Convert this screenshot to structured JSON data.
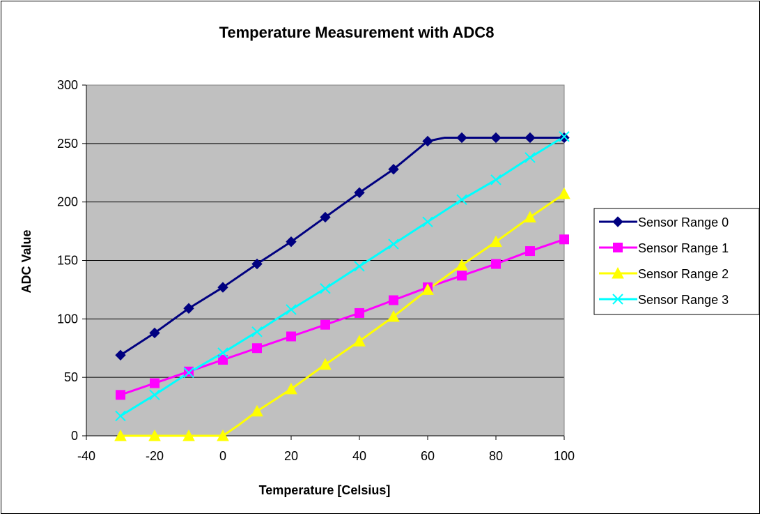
{
  "chart_data": {
    "type": "line",
    "title": "Temperature Measurement with ADC8",
    "xlabel": "Temperature [Celsius]",
    "ylabel": "ADC Value",
    "xlim": [
      -40,
      100
    ],
    "ylim": [
      0,
      300
    ],
    "xticks": [
      -40,
      -20,
      0,
      20,
      40,
      60,
      80,
      100
    ],
    "yticks": [
      0,
      50,
      100,
      150,
      200,
      250,
      300
    ],
    "grid": "horizontal",
    "plot_background": "#C0C0C0",
    "legend_position": "right",
    "series": [
      {
        "name": "Sensor Range 0",
        "color": "#000080",
        "marker": "diamond",
        "points": [
          [
            -30,
            69
          ],
          [
            -20,
            88
          ],
          [
            -10,
            109
          ],
          [
            0,
            127
          ],
          [
            10,
            147
          ],
          [
            20,
            166
          ],
          [
            30,
            187
          ],
          [
            40,
            208
          ],
          [
            45,
            218
          ],
          [
            50,
            228
          ],
          [
            60,
            252
          ],
          [
            65,
            255
          ],
          [
            70,
            255
          ],
          [
            80,
            255
          ],
          [
            90,
            255
          ],
          [
            100,
            255
          ]
        ],
        "marked_x": [
          -30,
          -20,
          -10,
          0,
          10,
          20,
          30,
          40,
          50,
          60,
          70,
          80,
          90,
          100
        ]
      },
      {
        "name": "Sensor Range 1",
        "color": "#FF00FF",
        "marker": "square",
        "points": [
          [
            -30,
            35
          ],
          [
            -20,
            45
          ],
          [
            -10,
            55
          ],
          [
            0,
            65
          ],
          [
            10,
            75
          ],
          [
            20,
            85
          ],
          [
            30,
            95
          ],
          [
            40,
            105
          ],
          [
            50,
            116
          ],
          [
            60,
            127
          ],
          [
            70,
            137
          ],
          [
            80,
            147
          ],
          [
            90,
            158
          ],
          [
            100,
            168
          ]
        ],
        "marked_x": [
          -30,
          -20,
          -10,
          0,
          10,
          20,
          30,
          40,
          50,
          60,
          70,
          80,
          90,
          100
        ]
      },
      {
        "name": "Sensor Range 2",
        "color": "#FFFF00",
        "marker": "triangle",
        "points": [
          [
            -30,
            0
          ],
          [
            -20,
            0
          ],
          [
            -10,
            0
          ],
          [
            -5,
            0
          ],
          [
            0,
            0
          ],
          [
            5,
            10
          ],
          [
            10,
            21
          ],
          [
            20,
            40
          ],
          [
            30,
            61
          ],
          [
            40,
            81
          ],
          [
            50,
            102
          ],
          [
            60,
            125
          ],
          [
            70,
            146
          ],
          [
            80,
            166
          ],
          [
            90,
            187
          ],
          [
            100,
            207
          ]
        ],
        "marked_x": [
          -30,
          -20,
          -10,
          0,
          10,
          20,
          30,
          40,
          50,
          60,
          70,
          80,
          90,
          100
        ]
      },
      {
        "name": "Sensor Range 3",
        "color": "#00FFFF",
        "marker": "x",
        "points": [
          [
            -30,
            17
          ],
          [
            -20,
            35
          ],
          [
            -10,
            54
          ],
          [
            0,
            71
          ],
          [
            10,
            89
          ],
          [
            20,
            108
          ],
          [
            30,
            126
          ],
          [
            40,
            145
          ],
          [
            50,
            164
          ],
          [
            60,
            183
          ],
          [
            70,
            202
          ],
          [
            80,
            219
          ],
          [
            90,
            238
          ],
          [
            100,
            256
          ]
        ],
        "marked_x": [
          -30,
          -20,
          -10,
          0,
          10,
          20,
          30,
          40,
          50,
          60,
          70,
          80,
          90,
          100
        ]
      }
    ]
  }
}
